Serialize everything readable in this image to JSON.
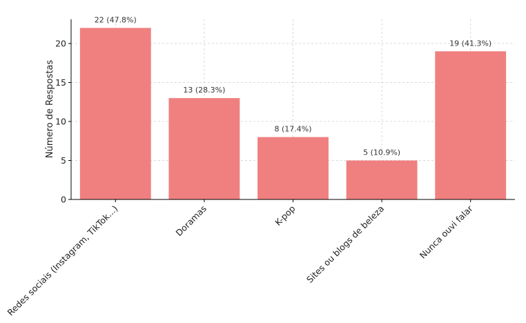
{
  "chart_data": {
    "type": "bar",
    "title": "",
    "xlabel": "",
    "ylabel": "Número de Respostas",
    "categories": [
      "Redes sociais (Instagram, TikTok...)",
      "Doramas",
      "K-pop",
      "Sites ou blogs de beleza",
      "Nunca ouvi falar"
    ],
    "values": [
      22,
      13,
      8,
      5,
      19
    ],
    "data_labels": [
      "22 (47.8%)",
      "13 (28.3%)",
      "8 (17.4%)",
      "5 (10.9%)",
      "19 (41.3%)"
    ],
    "yticks": [
      0,
      5,
      10,
      15,
      20
    ],
    "ylim": [
      0,
      23.1
    ],
    "grid": true,
    "bar_color": "#f08080",
    "grid_color": "#cccccc",
    "axis_color": "#000000"
  }
}
